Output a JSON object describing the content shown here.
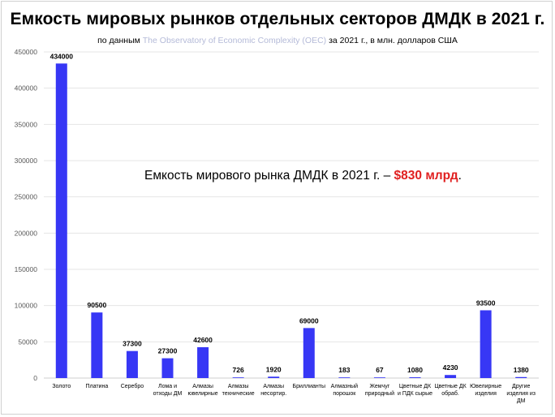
{
  "title": "Емкость мировых рынков отдельных секторов ДМДК в 2021 г.",
  "subtitle": {
    "prefix": "по данным",
    "source": "The Observatory of Economic Complexity (OEC)",
    "suffix": "за 2021 г., в млн. долларов США"
  },
  "callout": {
    "text": "Емкость мирового рынка ДМДК в 2021 г. –",
    "value": "$830 млрд",
    "end": "."
  },
  "colors": {
    "bar": "#3737f5",
    "grid": "#e4e4e4",
    "axis": "#cfcfcf",
    "highlight": "#e02020"
  },
  "chart_data": {
    "type": "bar",
    "categories": [
      [
        "Золото"
      ],
      [
        "Платина"
      ],
      [
        "Серебро"
      ],
      [
        "Лома и",
        "отходы ДМ"
      ],
      [
        "Алмазы",
        "ювелирные"
      ],
      [
        "Алмазы",
        "технические"
      ],
      [
        "Алмазы",
        "несортир."
      ],
      [
        "Бриллианты"
      ],
      [
        "Алмазный",
        "порошок"
      ],
      [
        "Жемчуг",
        "природный"
      ],
      [
        "Цветные ДК",
        "и ПДК сырые"
      ],
      [
        "Цветные ДК",
        "обраб."
      ],
      [
        "Ювелирные",
        "изделия"
      ],
      [
        "Другие",
        "изделия из",
        "ДМ"
      ]
    ],
    "values": [
      434000,
      90500,
      37300,
      27300,
      42600,
      726,
      1920,
      69000,
      183,
      67,
      1080,
      4230,
      93500,
      1380
    ],
    "ylim": [
      0,
      450000
    ],
    "yticks": [
      0,
      50000,
      100000,
      150000,
      200000,
      250000,
      300000,
      350000,
      400000,
      450000
    ],
    "grid": true,
    "legend": false
  }
}
